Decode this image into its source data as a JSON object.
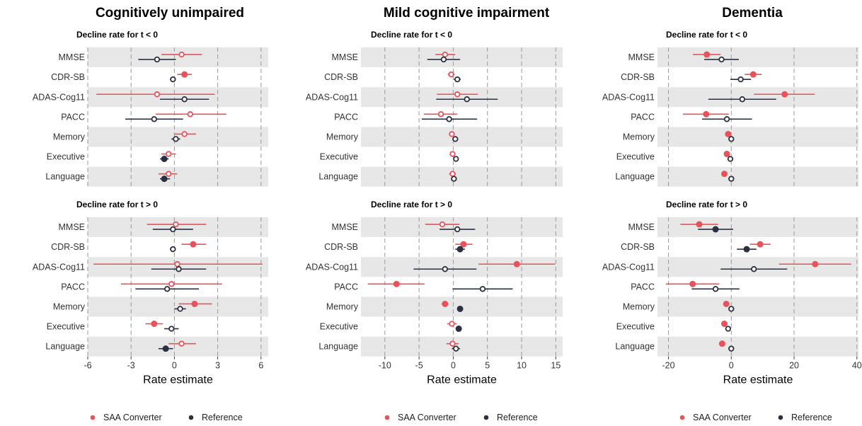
{
  "colors": {
    "saa": "#E8525A",
    "ref": "#2B3040",
    "band": "#E7E7E7",
    "grid": "#9A9A9A"
  },
  "legend": {
    "saa": "SAA Converter",
    "ref": "Reference"
  },
  "chart_data": [
    {
      "type": "forest",
      "title": "Cognitively unimpaired",
      "xlabel": "Rate estimate",
      "xlim": [
        -6,
        6.5
      ],
      "xticks": [
        -6,
        -3,
        0,
        3,
        6
      ],
      "categories": [
        "MMSE",
        "CDR-SB",
        "ADAS-Cog11",
        "PACC",
        "Memory",
        "Executive",
        "Language"
      ],
      "panels": [
        {
          "subtitle": "Decline rate for t < 0",
          "series": [
            {
              "name": "SAA Converter",
              "points": [
                {
                  "est": 0.5,
                  "lo": -0.9,
                  "hi": 1.9,
                  "filled": false
                },
                {
                  "est": 0.7,
                  "lo": 0.2,
                  "hi": 1.2,
                  "filled": true
                },
                {
                  "est": -1.2,
                  "lo": -5.4,
                  "hi": 2.8,
                  "filled": false
                },
                {
                  "est": 1.1,
                  "lo": -1.3,
                  "hi": 3.6,
                  "filled": false
                },
                {
                  "est": 0.7,
                  "lo": 0.0,
                  "hi": 1.5,
                  "filled": false
                },
                {
                  "est": -0.4,
                  "lo": -0.9,
                  "hi": 0.1,
                  "filled": false
                },
                {
                  "est": -0.4,
                  "lo": -1.1,
                  "hi": 0.2,
                  "filled": false
                }
              ]
            },
            {
              "name": "Reference",
              "points": [
                {
                  "est": -1.2,
                  "lo": -2.5,
                  "hi": 0.1,
                  "filled": false
                },
                {
                  "est": -0.1,
                  "lo": -0.3,
                  "hi": 0.1,
                  "filled": false
                },
                {
                  "est": 0.7,
                  "lo": -1.0,
                  "hi": 2.4,
                  "filled": false
                },
                {
                  "est": -1.4,
                  "lo": -3.4,
                  "hi": 0.6,
                  "filled": false
                },
                {
                  "est": 0.1,
                  "lo": -0.2,
                  "hi": 0.4,
                  "filled": false
                },
                {
                  "est": -0.7,
                  "lo": -1.0,
                  "hi": -0.4,
                  "filled": true
                },
                {
                  "est": -0.7,
                  "lo": -1.0,
                  "hi": -0.3,
                  "filled": true
                }
              ]
            }
          ]
        },
        {
          "subtitle": "Decline rate for t > 0",
          "series": [
            {
              "name": "SAA Converter",
              "points": [
                {
                  "est": 0.1,
                  "lo": -1.9,
                  "hi": 2.2,
                  "filled": false
                },
                {
                  "est": 1.3,
                  "lo": 0.5,
                  "hi": 2.2,
                  "filled": true
                },
                {
                  "est": 0.2,
                  "lo": -5.6,
                  "hi": 6.1,
                  "filled": false
                },
                {
                  "est": -0.2,
                  "lo": -3.7,
                  "hi": 3.3,
                  "filled": false
                },
                {
                  "est": 1.4,
                  "lo": 0.3,
                  "hi": 2.6,
                  "filled": true
                },
                {
                  "est": -1.4,
                  "lo": -2.0,
                  "hi": -0.8,
                  "filled": true
                },
                {
                  "est": 0.5,
                  "lo": -0.4,
                  "hi": 1.5,
                  "filled": false
                }
              ]
            },
            {
              "name": "Reference",
              "points": [
                {
                  "est": -0.1,
                  "lo": -1.5,
                  "hi": 1.3,
                  "filled": false
                },
                {
                  "est": -0.1,
                  "lo": -0.3,
                  "hi": 0.1,
                  "filled": false
                },
                {
                  "est": 0.3,
                  "lo": -1.6,
                  "hi": 2.2,
                  "filled": false
                },
                {
                  "est": -0.5,
                  "lo": -2.7,
                  "hi": 1.7,
                  "filled": false
                },
                {
                  "est": 0.4,
                  "lo": 0.0,
                  "hi": 0.8,
                  "filled": false
                },
                {
                  "est": -0.2,
                  "lo": -0.7,
                  "hi": 0.3,
                  "filled": false
                },
                {
                  "est": -0.6,
                  "lo": -1.1,
                  "hi": -0.1,
                  "filled": true
                }
              ]
            }
          ]
        }
      ]
    },
    {
      "type": "forest",
      "title": "Mild cognitive impairment",
      "xlabel": "Rate estimate",
      "xlim": [
        -13.5,
        16
      ],
      "xticks": [
        -10,
        -5,
        0,
        5,
        10,
        15
      ],
      "categories": [
        "MMSE",
        "CDR-SB",
        "ADAS-Cog11",
        "PACC",
        "Memory",
        "Executive",
        "Language"
      ],
      "panels": [
        {
          "subtitle": "Decline rate for t < 0",
          "series": [
            {
              "name": "SAA Converter",
              "points": [
                {
                  "est": -1.2,
                  "lo": -2.6,
                  "hi": 0.3,
                  "filled": false
                },
                {
                  "est": -0.3,
                  "lo": -0.8,
                  "hi": 0.2,
                  "filled": false
                },
                {
                  "est": 0.6,
                  "lo": -2.4,
                  "hi": 3.6,
                  "filled": false
                },
                {
                  "est": -1.8,
                  "lo": -4.3,
                  "hi": 0.6,
                  "filled": false
                },
                {
                  "est": -0.2,
                  "lo": -0.5,
                  "hi": 0.1,
                  "filled": false
                },
                {
                  "est": -0.1,
                  "lo": -0.4,
                  "hi": 0.2,
                  "filled": false
                },
                {
                  "est": -0.1,
                  "lo": -0.6,
                  "hi": 0.4,
                  "filled": false
                }
              ]
            },
            {
              "name": "Reference",
              "points": [
                {
                  "est": -1.4,
                  "lo": -3.8,
                  "hi": 1.0,
                  "filled": false
                },
                {
                  "est": 0.6,
                  "lo": 0.1,
                  "hi": 1.1,
                  "filled": false
                },
                {
                  "est": 2.0,
                  "lo": -2.5,
                  "hi": 6.5,
                  "filled": false
                },
                {
                  "est": -0.6,
                  "lo": -4.6,
                  "hi": 3.5,
                  "filled": false
                },
                {
                  "est": 0.3,
                  "lo": -0.1,
                  "hi": 0.7,
                  "filled": false
                },
                {
                  "est": 0.4,
                  "lo": 0.1,
                  "hi": 0.7,
                  "filled": false
                },
                {
                  "est": 0.1,
                  "lo": -0.3,
                  "hi": 0.5,
                  "filled": false
                }
              ]
            }
          ]
        },
        {
          "subtitle": "Decline rate for t > 0",
          "series": [
            {
              "name": "SAA Converter",
              "points": [
                {
                  "est": -1.6,
                  "lo": -4.1,
                  "hi": 0.9,
                  "filled": false
                },
                {
                  "est": 1.5,
                  "lo": 0.3,
                  "hi": 2.8,
                  "filled": true
                },
                {
                  "est": 9.3,
                  "lo": 3.7,
                  "hi": 14.9,
                  "filled": true
                },
                {
                  "est": -8.3,
                  "lo": -12.5,
                  "hi": -4.2,
                  "filled": true
                },
                {
                  "est": -1.2,
                  "lo": -1.7,
                  "hi": -0.7,
                  "filled": true
                },
                {
                  "est": -0.2,
                  "lo": -0.9,
                  "hi": 0.5,
                  "filled": false
                },
                {
                  "est": -0.1,
                  "lo": -1.0,
                  "hi": 0.8,
                  "filled": false
                }
              ]
            },
            {
              "name": "Reference",
              "points": [
                {
                  "est": 0.6,
                  "lo": -2.0,
                  "hi": 3.2,
                  "filled": false
                },
                {
                  "est": 1.0,
                  "lo": 0.3,
                  "hi": 1.7,
                  "filled": true
                },
                {
                  "est": -1.2,
                  "lo": -5.8,
                  "hi": 3.4,
                  "filled": false
                },
                {
                  "est": 4.3,
                  "lo": -0.1,
                  "hi": 8.7,
                  "filled": false
                },
                {
                  "est": 1.0,
                  "lo": 0.6,
                  "hi": 1.4,
                  "filled": true
                },
                {
                  "est": 0.8,
                  "lo": 0.4,
                  "hi": 1.2,
                  "filled": true
                },
                {
                  "est": 0.4,
                  "lo": -0.2,
                  "hi": 1.0,
                  "filled": false
                }
              ]
            }
          ]
        }
      ]
    },
    {
      "type": "forest",
      "title": "Dementia",
      "xlabel": "Rate estimate",
      "xlim": [
        -23.5,
        40.5
      ],
      "xticks": [
        -20,
        0,
        20,
        40
      ],
      "categories": [
        "MMSE",
        "CDR-SB",
        "ADAS-Cog11",
        "PACC",
        "Memory",
        "Executive",
        "Language"
      ],
      "panels": [
        {
          "subtitle": "Decline rate for t < 0",
          "series": [
            {
              "name": "SAA Converter",
              "points": [
                {
                  "est": -7.8,
                  "lo": -12.2,
                  "hi": -3.4,
                  "filled": true
                },
                {
                  "est": 7.0,
                  "lo": 4.3,
                  "hi": 9.7,
                  "filled": true
                },
                {
                  "est": 17.0,
                  "lo": 7.2,
                  "hi": 26.6,
                  "filled": true
                },
                {
                  "est": -8.0,
                  "lo": -15.4,
                  "hi": -0.8,
                  "filled": true
                },
                {
                  "est": -1.0,
                  "lo": -1.6,
                  "hi": -0.4,
                  "filled": true
                },
                {
                  "est": -1.4,
                  "lo": -2.0,
                  "hi": -0.8,
                  "filled": true
                },
                {
                  "est": -2.2,
                  "lo": -2.8,
                  "hi": -1.6,
                  "filled": true
                }
              ]
            },
            {
              "name": "Reference",
              "points": [
                {
                  "est": -3.1,
                  "lo": -8.6,
                  "hi": 2.4,
                  "filled": false
                },
                {
                  "est": 3.0,
                  "lo": -0.3,
                  "hi": 6.3,
                  "filled": false
                },
                {
                  "est": 3.5,
                  "lo": -7.3,
                  "hi": 14.3,
                  "filled": false
                },
                {
                  "est": -1.4,
                  "lo": -9.3,
                  "hi": 6.6,
                  "filled": false
                },
                {
                  "est": 0.0,
                  "lo": -0.5,
                  "hi": 0.5,
                  "filled": false
                },
                {
                  "est": -0.3,
                  "lo": -1.0,
                  "hi": 0.4,
                  "filled": false
                },
                {
                  "est": 0.0,
                  "lo": -0.6,
                  "hi": 0.6,
                  "filled": false
                }
              ]
            }
          ]
        },
        {
          "subtitle": "Decline rate for t > 0",
          "series": [
            {
              "name": "SAA Converter",
              "points": [
                {
                  "est": -10.2,
                  "lo": -16.2,
                  "hi": -4.2,
                  "filled": true
                },
                {
                  "est": 9.2,
                  "lo": 5.9,
                  "hi": 12.5,
                  "filled": true
                },
                {
                  "est": 26.7,
                  "lo": 15.2,
                  "hi": 38.2,
                  "filled": true
                },
                {
                  "est": -12.3,
                  "lo": -20.8,
                  "hi": -3.8,
                  "filled": true
                },
                {
                  "est": -1.6,
                  "lo": -2.2,
                  "hi": -1.0,
                  "filled": true
                },
                {
                  "est": -2.2,
                  "lo": -2.9,
                  "hi": -1.5,
                  "filled": true
                },
                {
                  "est": -2.9,
                  "lo": -3.6,
                  "hi": -2.2,
                  "filled": true
                }
              ]
            },
            {
              "name": "Reference",
              "points": [
                {
                  "est": -5.0,
                  "lo": -10.6,
                  "hi": 0.6,
                  "filled": true
                },
                {
                  "est": 4.9,
                  "lo": 1.8,
                  "hi": 8.0,
                  "filled": true
                },
                {
                  "est": 7.2,
                  "lo": -3.4,
                  "hi": 17.8,
                  "filled": false
                },
                {
                  "est": -5.0,
                  "lo": -12.6,
                  "hi": 2.6,
                  "filled": false
                },
                {
                  "est": 0.0,
                  "lo": -0.5,
                  "hi": 0.5,
                  "filled": false
                },
                {
                  "est": -1.0,
                  "lo": -1.7,
                  "hi": -0.3,
                  "filled": false
                },
                {
                  "est": 0.0,
                  "lo": -0.6,
                  "hi": 0.6,
                  "filled": false
                }
              ]
            }
          ]
        }
      ]
    }
  ]
}
